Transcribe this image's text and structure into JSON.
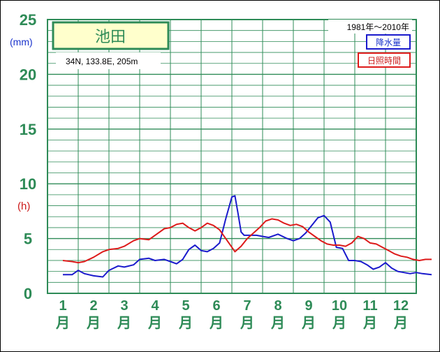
{
  "chart_data": {
    "type": "line",
    "station": "池田",
    "coords": "34N,  133.8E,  205m",
    "period": "1981年〜2010年",
    "unit_precip": "(mm)",
    "unit_sun": "(h)",
    "yticks": [
      "0",
      "5",
      "10",
      "15",
      "20",
      "25"
    ],
    "ylim": [
      0,
      25
    ],
    "months": [
      "1",
      "2",
      "3",
      "4",
      "5",
      "6",
      "7",
      "8",
      "9",
      "10",
      "11",
      "12"
    ],
    "month_suffix": "月",
    "grid": true,
    "legend": "top-right",
    "series": [
      {
        "name": "降水量",
        "color": "#1a1acc",
        "x": [
          0.5,
          0.8,
          1.0,
          1.2,
          1.5,
          1.8,
          2.0,
          2.3,
          2.5,
          2.8,
          3.0,
          3.3,
          3.5,
          3.8,
          4.0,
          4.2,
          4.4,
          4.6,
          4.8,
          5.0,
          5.2,
          5.4,
          5.6,
          5.8,
          6.0,
          6.1,
          6.2,
          6.3,
          6.4,
          6.6,
          6.8,
          7.0,
          7.2,
          7.5,
          7.8,
          8.0,
          8.2,
          8.4,
          8.6,
          8.8,
          9.0,
          9.2,
          9.4,
          9.6,
          9.8,
          10.0,
          10.2,
          10.4,
          10.6,
          10.8,
          11.0,
          11.2,
          11.4,
          11.6,
          11.8,
          12.0,
          12.2,
          12.5
        ],
        "values": [
          1.7,
          1.7,
          2.1,
          1.8,
          1.6,
          1.5,
          2.1,
          2.5,
          2.4,
          2.6,
          3.1,
          3.2,
          3.0,
          3.1,
          2.9,
          2.7,
          3.1,
          4.0,
          4.4,
          3.9,
          3.8,
          4.1,
          4.6,
          6.8,
          8.8,
          8.9,
          7.3,
          5.6,
          5.3,
          5.3,
          5.3,
          5.2,
          5.1,
          5.4,
          5.0,
          4.8,
          5.0,
          5.5,
          6.2,
          6.9,
          7.1,
          6.5,
          4.2,
          4.1,
          3.0,
          3.0,
          2.9,
          2.6,
          2.2,
          2.4,
          2.8,
          2.3,
          2.0,
          1.9,
          1.8,
          1.9,
          1.8,
          1.7
        ]
      },
      {
        "name": "日照時間",
        "color": "#dd1a1a",
        "x": [
          0.5,
          0.8,
          1.0,
          1.2,
          1.5,
          1.8,
          2.0,
          2.3,
          2.5,
          2.8,
          3.0,
          3.3,
          3.5,
          3.8,
          4.0,
          4.2,
          4.4,
          4.6,
          4.8,
          5.0,
          5.2,
          5.4,
          5.6,
          5.8,
          6.0,
          6.1,
          6.3,
          6.5,
          6.7,
          6.9,
          7.1,
          7.3,
          7.5,
          7.7,
          7.9,
          8.1,
          8.3,
          8.5,
          8.7,
          8.9,
          9.1,
          9.3,
          9.5,
          9.7,
          9.9,
          10.1,
          10.3,
          10.5,
          10.7,
          10.9,
          11.1,
          11.3,
          11.5,
          11.7,
          11.9,
          12.1,
          12.3,
          12.5
        ],
        "values": [
          3.0,
          2.9,
          2.8,
          2.9,
          3.3,
          3.8,
          4.0,
          4.1,
          4.3,
          4.8,
          5.0,
          4.9,
          5.3,
          5.9,
          6.0,
          6.3,
          6.4,
          6.0,
          5.7,
          6.0,
          6.4,
          6.2,
          5.8,
          5.0,
          4.2,
          3.8,
          4.3,
          5.0,
          5.5,
          6.0,
          6.6,
          6.8,
          6.7,
          6.4,
          6.2,
          6.3,
          6.1,
          5.6,
          5.2,
          4.8,
          4.5,
          4.4,
          4.4,
          4.3,
          4.6,
          5.2,
          5.0,
          4.6,
          4.5,
          4.2,
          3.9,
          3.6,
          3.4,
          3.3,
          3.1,
          3.0,
          3.1,
          3.1
        ]
      }
    ]
  }
}
